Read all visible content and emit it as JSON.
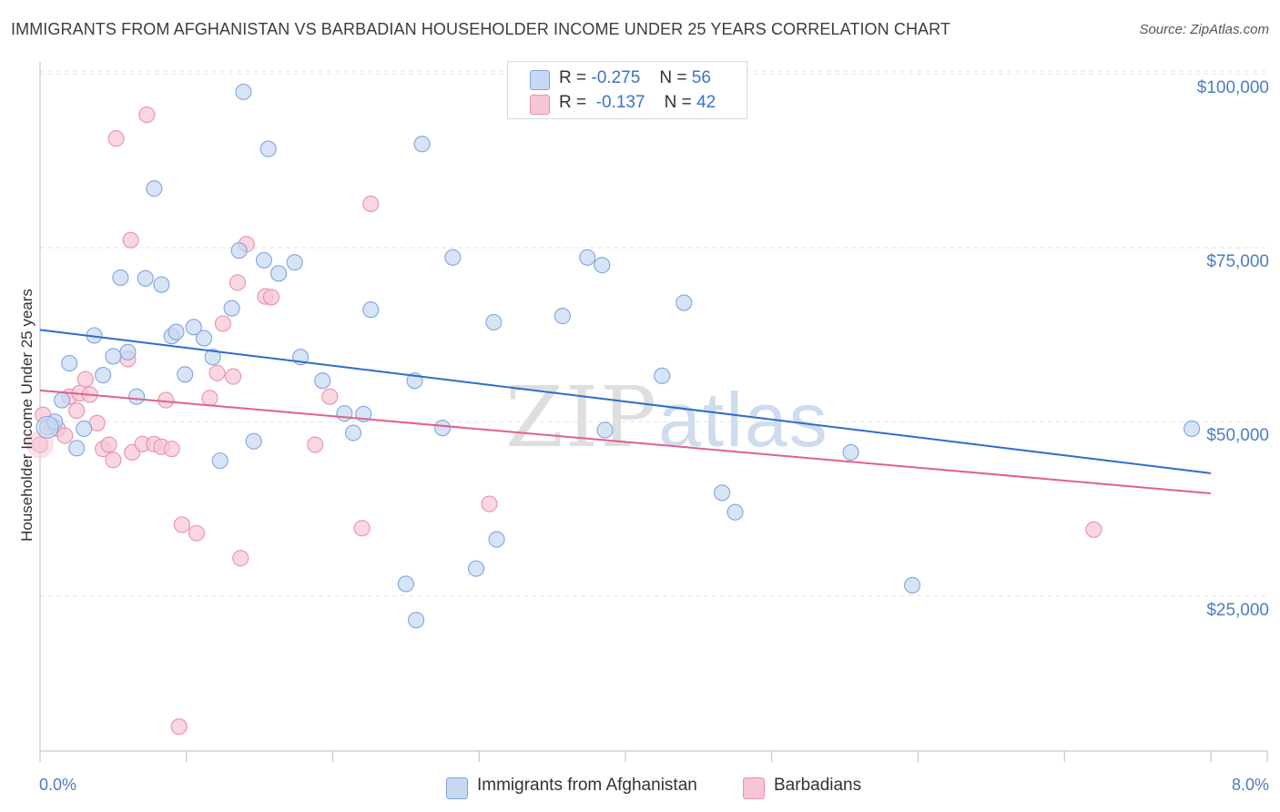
{
  "title": "IMMIGRANTS FROM AFGHANISTAN VS BARBADIAN HOUSEHOLDER INCOME UNDER 25 YEARS CORRELATION CHART",
  "source": "Source: ZipAtlas.com",
  "watermark": {
    "zip": "ZIP",
    "atlas": "atlas"
  },
  "colors": {
    "blue_fill": "#c6d8f2",
    "blue_stroke": "#7fa6de",
    "blue_line": "#2e6ccc",
    "pink_fill": "#f7c6d5",
    "pink_stroke": "#eb8fad",
    "pink_line": "#e0608c",
    "grid": "#e3e3e3",
    "tick_text": "#4a7cc9"
  },
  "legend": {
    "r_label": "R =",
    "n_label": "N =",
    "items": [
      {
        "r": "-0.275",
        "n": "56"
      },
      {
        "r": "-0.137",
        "n": "42"
      }
    ]
  },
  "bottom_legend": [
    "Immigrants from Afghanistan",
    "Barbadians"
  ],
  "chart_data": {
    "type": "scatter",
    "title": "IMMIGRANTS FROM AFGHANISTAN VS BARBADIAN HOUSEHOLDER INCOME UNDER 25 YEARS CORRELATION CHART",
    "xlabel": "",
    "ylabel": "Householder Income Under 25 years",
    "xlim": [
      0,
      8
    ],
    "ylim": [
      0,
      102000
    ],
    "x_tick_labels": [
      "0.0%",
      "8.0%"
    ],
    "y_ticks": [
      25000,
      50000,
      75000,
      100000
    ],
    "y_tick_labels": [
      "$25,000",
      "$50,000",
      "$75,000",
      "$100,000"
    ],
    "grid": true,
    "legend_placement": "top-center",
    "series": [
      {
        "name": "Immigrants from Afghanistan",
        "r": -0.275,
        "n": 56,
        "trend": {
          "x": [
            0,
            8
          ],
          "y": [
            63200,
            42600
          ]
        },
        "points": [
          [
            0.05,
            49200
          ],
          [
            0.1,
            50000
          ],
          [
            0.15,
            53100
          ],
          [
            0.2,
            58400
          ],
          [
            0.25,
            46200
          ],
          [
            0.3,
            49000
          ],
          [
            0.37,
            62400
          ],
          [
            0.43,
            56700
          ],
          [
            0.5,
            59400
          ],
          [
            0.55,
            70700
          ],
          [
            0.6,
            60000
          ],
          [
            0.66,
            53600
          ],
          [
            0.72,
            70600
          ],
          [
            0.78,
            83500
          ],
          [
            0.83,
            69700
          ],
          [
            0.9,
            62300
          ],
          [
            0.93,
            62900
          ],
          [
            0.99,
            56800
          ],
          [
            1.05,
            63600
          ],
          [
            1.12,
            62000
          ],
          [
            1.18,
            59300
          ],
          [
            1.23,
            44400
          ],
          [
            1.31,
            66300
          ],
          [
            1.36,
            74600
          ],
          [
            1.39,
            97400
          ],
          [
            1.46,
            47200
          ],
          [
            1.53,
            73200
          ],
          [
            1.56,
            89200
          ],
          [
            1.63,
            71300
          ],
          [
            1.74,
            72900
          ],
          [
            1.78,
            59300
          ],
          [
            1.93,
            55900
          ],
          [
            2.08,
            51200
          ],
          [
            2.14,
            48400
          ],
          [
            2.21,
            51100
          ],
          [
            2.26,
            66100
          ],
          [
            2.5,
            26700
          ],
          [
            2.57,
            21500
          ],
          [
            2.56,
            55900
          ],
          [
            2.61,
            89900
          ],
          [
            2.75,
            49100
          ],
          [
            2.82,
            73600
          ],
          [
            2.98,
            28900
          ],
          [
            3.1,
            64300
          ],
          [
            3.12,
            33100
          ],
          [
            3.57,
            65200
          ],
          [
            3.74,
            73600
          ],
          [
            3.84,
            72500
          ],
          [
            3.86,
            48800
          ],
          [
            4.25,
            56600
          ],
          [
            4.4,
            67100
          ],
          [
            4.66,
            39800
          ],
          [
            4.75,
            37000
          ],
          [
            5.54,
            45600
          ],
          [
            5.96,
            26500
          ],
          [
            7.87,
            49000
          ]
        ]
      },
      {
        "name": "Barbadians",
        "r": -0.137,
        "n": 42,
        "trend": {
          "x": [
            0,
            8
          ],
          "y": [
            54500,
            39700
          ]
        },
        "points": [
          [
            0.0,
            46700
          ],
          [
            0.02,
            51000
          ],
          [
            0.08,
            49500
          ],
          [
            0.12,
            49000
          ],
          [
            0.17,
            48000
          ],
          [
            0.2,
            53600
          ],
          [
            0.25,
            51600
          ],
          [
            0.27,
            54100
          ],
          [
            0.31,
            56100
          ],
          [
            0.34,
            53900
          ],
          [
            0.39,
            49800
          ],
          [
            0.43,
            46100
          ],
          [
            0.47,
            46700
          ],
          [
            0.5,
            44500
          ],
          [
            0.52,
            90700
          ],
          [
            0.6,
            59000
          ],
          [
            0.63,
            45600
          ],
          [
            0.62,
            76100
          ],
          [
            0.7,
            46800
          ],
          [
            0.73,
            94100
          ],
          [
            0.78,
            46800
          ],
          [
            0.83,
            46400
          ],
          [
            0.86,
            53100
          ],
          [
            0.9,
            46100
          ],
          [
            0.95,
            6200
          ],
          [
            0.97,
            35200
          ],
          [
            1.07,
            34000
          ],
          [
            1.16,
            53400
          ],
          [
            1.21,
            57000
          ],
          [
            1.25,
            64100
          ],
          [
            1.32,
            56500
          ],
          [
            1.35,
            70000
          ],
          [
            1.37,
            30400
          ],
          [
            1.41,
            75500
          ],
          [
            1.54,
            68000
          ],
          [
            1.58,
            67900
          ],
          [
            1.88,
            46700
          ],
          [
            1.98,
            53600
          ],
          [
            2.2,
            34700
          ],
          [
            2.26,
            81300
          ],
          [
            3.07,
            38200
          ],
          [
            7.2,
            34500
          ]
        ]
      }
    ]
  }
}
